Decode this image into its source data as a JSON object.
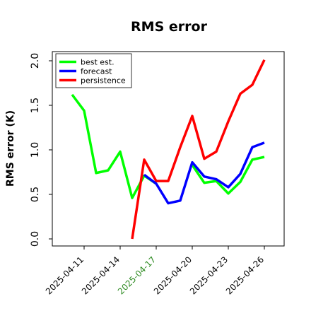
{
  "chart_data": {
    "type": "line",
    "title": "RMS error",
    "xlabel": "",
    "ylabel": "RMS error (K)",
    "ylim": [
      -0.05,
      2.12
    ],
    "grid": false,
    "legend_position": "top-left",
    "yticks": [
      0.0,
      0.5,
      1.0,
      1.5,
      2.0
    ],
    "ytick_labels": [
      "0.0",
      "0.5",
      "1.0",
      "1.5",
      "2.0"
    ],
    "x_ticks": [
      {
        "label": "2025-04-11",
        "color": "#000000"
      },
      {
        "label": "2025-04-14",
        "color": "#000000"
      },
      {
        "label": "2025-04-17",
        "color": "#2e8b22"
      },
      {
        "label": "2025-04-20",
        "color": "#000000"
      },
      {
        "label": "2025-04-23",
        "color": "#000000"
      },
      {
        "label": "2025-04-26",
        "color": "#000000"
      }
    ],
    "x": [
      "2025-04-10",
      "2025-04-11",
      "2025-04-12",
      "2025-04-13",
      "2025-04-14",
      "2025-04-15",
      "2025-04-16",
      "2025-04-17",
      "2025-04-18",
      "2025-04-19",
      "2025-04-20",
      "2025-04-21",
      "2025-04-22",
      "2025-04-23",
      "2025-04-24",
      "2025-04-25",
      "2025-04-26"
    ],
    "series": [
      {
        "name": "best est.",
        "color": "#00ff00",
        "values": [
          1.62,
          1.44,
          0.74,
          0.77,
          0.98,
          0.46,
          0.71,
          0.62,
          null,
          null,
          0.83,
          0.63,
          0.65,
          0.51,
          0.64,
          0.89,
          0.92
        ]
      },
      {
        "name": "forecast",
        "color": "#0000ff",
        "values": [
          null,
          null,
          null,
          null,
          null,
          null,
          0.72,
          0.62,
          0.4,
          0.43,
          0.86,
          0.7,
          0.67,
          0.58,
          0.73,
          1.03,
          1.08
        ]
      },
      {
        "name": "persistence",
        "color": "#ff0000",
        "values": [
          null,
          null,
          null,
          null,
          null,
          0.0,
          0.89,
          0.65,
          0.65,
          1.03,
          1.38,
          0.9,
          0.98,
          1.32,
          1.63,
          1.73,
          2.01
        ]
      }
    ]
  }
}
